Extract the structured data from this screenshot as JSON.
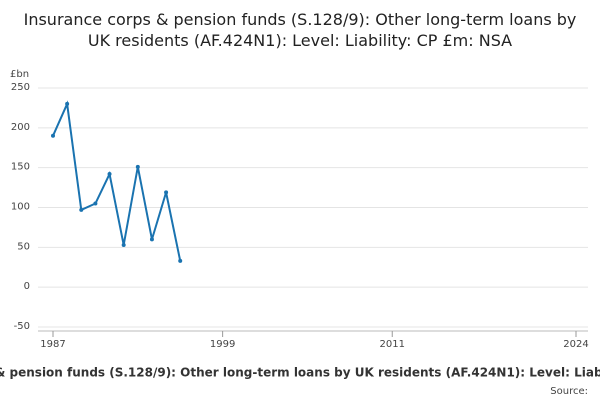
{
  "chart_data": {
    "type": "line",
    "title": "Insurance corps & pension funds (S.128/9): Other long-term loans by UK residents (AF.424N1): Level: Liability: CP £m: NSA",
    "y_label": "£bn",
    "x": [
      1987,
      1988,
      1989,
      1990,
      1991,
      1992,
      1993,
      1994,
      1995,
      1996
    ],
    "series": [
      {
        "name": "Insurance corps & pension funds (S.128/9): Other long-term loans by UK residents (AF.424N1): Level: Liability: CP £m: NSA",
        "color": "#1a73b0",
        "values": [
          190,
          230,
          97,
          105,
          142,
          53,
          151,
          60,
          119,
          33
        ]
      }
    ],
    "xlim": [
      1987,
      2024
    ],
    "xticks": [
      1987,
      1999,
      2011,
      2024
    ],
    "ylim": [
      -50,
      250
    ],
    "yticks": [
      -50,
      0,
      50,
      100,
      150,
      200,
      250
    ],
    "grid": true,
    "source": "Source:"
  }
}
